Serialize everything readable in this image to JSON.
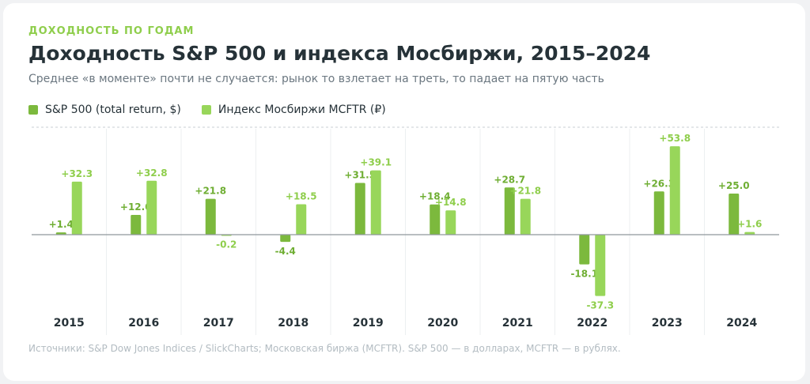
{
  "header": {
    "eyebrow": "ДОХОДНОСТЬ ПО ГОДАМ",
    "title": "Доходность S&P 500 и индекса Мосбиржи, 2015–2024",
    "subtitle": "Среднее «в моменте» почти не случается: рынок то взлетает на треть, то падает на пятую часть"
  },
  "colors": {
    "sp500": "#7cb93d",
    "mcftr": "#98d65a",
    "sp500_label": "#6fae33",
    "mcftr_label": "#8fce4c",
    "axis": "#8f979c",
    "grid": "#eceff1",
    "top_line": "#c9cfd3"
  },
  "chart_data": {
    "type": "bar",
    "categories": [
      "2015",
      "2016",
      "2017",
      "2018",
      "2019",
      "2020",
      "2021",
      "2022",
      "2023",
      "2024"
    ],
    "series": [
      {
        "name": "S&P 500 (total return, $)",
        "values": [
          1.4,
          12.0,
          21.8,
          -4.4,
          31.5,
          18.4,
          28.7,
          -18.1,
          26.3,
          25.0
        ],
        "labels": [
          "+1.4",
          "+12.0",
          "+21.8",
          "-4.4",
          "+31.5",
          "+18.4",
          "+28.7",
          "-18.1",
          "+26.3",
          "+25.0"
        ]
      },
      {
        "name": "Индекс Мосбиржи MCFTR (₽)",
        "values": [
          32.3,
          32.8,
          -0.2,
          18.5,
          39.1,
          14.8,
          21.8,
          -37.3,
          53.8,
          1.6
        ],
        "labels": [
          "+32.3",
          "+32.8",
          "-0.2",
          "+18.5",
          "+39.1",
          "+14.8",
          "+21.8",
          "-37.3",
          "+53.8",
          "+1.6"
        ]
      }
    ],
    "ylim": [
      -40,
      62
    ],
    "legend_position": "top-left",
    "grid": true
  },
  "footer": {
    "source": "Источники: S&P Dow Jones Indices / SlickCharts; Московская биржа (MCFTR). S&P 500 — в долларах, MCFTR — в рублях."
  }
}
